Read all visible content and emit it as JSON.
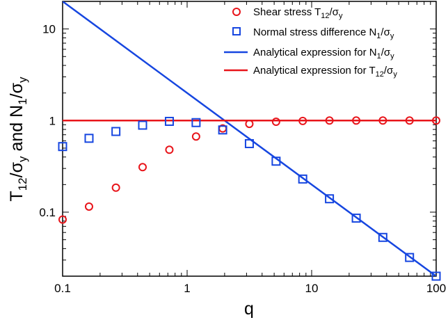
{
  "chart_data": {
    "type": "scatter",
    "xscale": "log",
    "yscale": "log",
    "xlim": [
      0.1,
      100
    ],
    "ylim": [
      0.02,
      20
    ],
    "xticks": [
      {
        "value": 0.1,
        "label": "0.1"
      },
      {
        "value": 1,
        "label": "1"
      },
      {
        "value": 10,
        "label": "10"
      },
      {
        "value": 100,
        "label": "100"
      }
    ],
    "yticks": [
      {
        "value": 0.1,
        "label": "0.1"
      },
      {
        "value": 1,
        "label": "1"
      },
      {
        "value": 10,
        "label": "10"
      }
    ],
    "xlabel": "q",
    "ylabel": "T12/σy and N1/σy",
    "legend_position": "top-right",
    "grid": false,
    "series": [
      {
        "name": "Shear stress T12/σy",
        "kind": "marker",
        "marker": "circle",
        "color": "#e8141a",
        "x": [
          0.1,
          0.163,
          0.268,
          0.439,
          0.72,
          1.18,
          1.93,
          3.16,
          5.18,
          8.48,
          13.9,
          22.8,
          37.3,
          61.1,
          100
        ],
        "y": [
          0.083,
          0.115,
          0.185,
          0.31,
          0.48,
          0.67,
          0.82,
          0.92,
          0.97,
          0.99,
          1.0,
          1.0,
          1.0,
          1.0,
          1.0
        ]
      },
      {
        "name": "Normal stress difference N1/σy",
        "kind": "marker",
        "marker": "square",
        "color": "#1646e0",
        "x": [
          0.1,
          0.163,
          0.268,
          0.439,
          0.72,
          1.18,
          1.93,
          3.16,
          5.18,
          8.48,
          13.9,
          22.8,
          37.3,
          61.1,
          100
        ],
        "y": [
          0.52,
          0.64,
          0.76,
          0.89,
          0.98,
          0.95,
          0.79,
          0.56,
          0.36,
          0.23,
          0.14,
          0.086,
          0.053,
          0.032,
          0.02
        ]
      },
      {
        "name": "Analytical expression for  N1/σy",
        "kind": "line",
        "color": "#1646e0",
        "x": [
          0.1,
          100
        ],
        "y": [
          20,
          0.02
        ]
      },
      {
        "name": "Analytical expression for T12/σy",
        "kind": "line",
        "color": "#e8141a",
        "x": [
          0.1,
          100
        ],
        "y": [
          1,
          1
        ]
      }
    ]
  }
}
